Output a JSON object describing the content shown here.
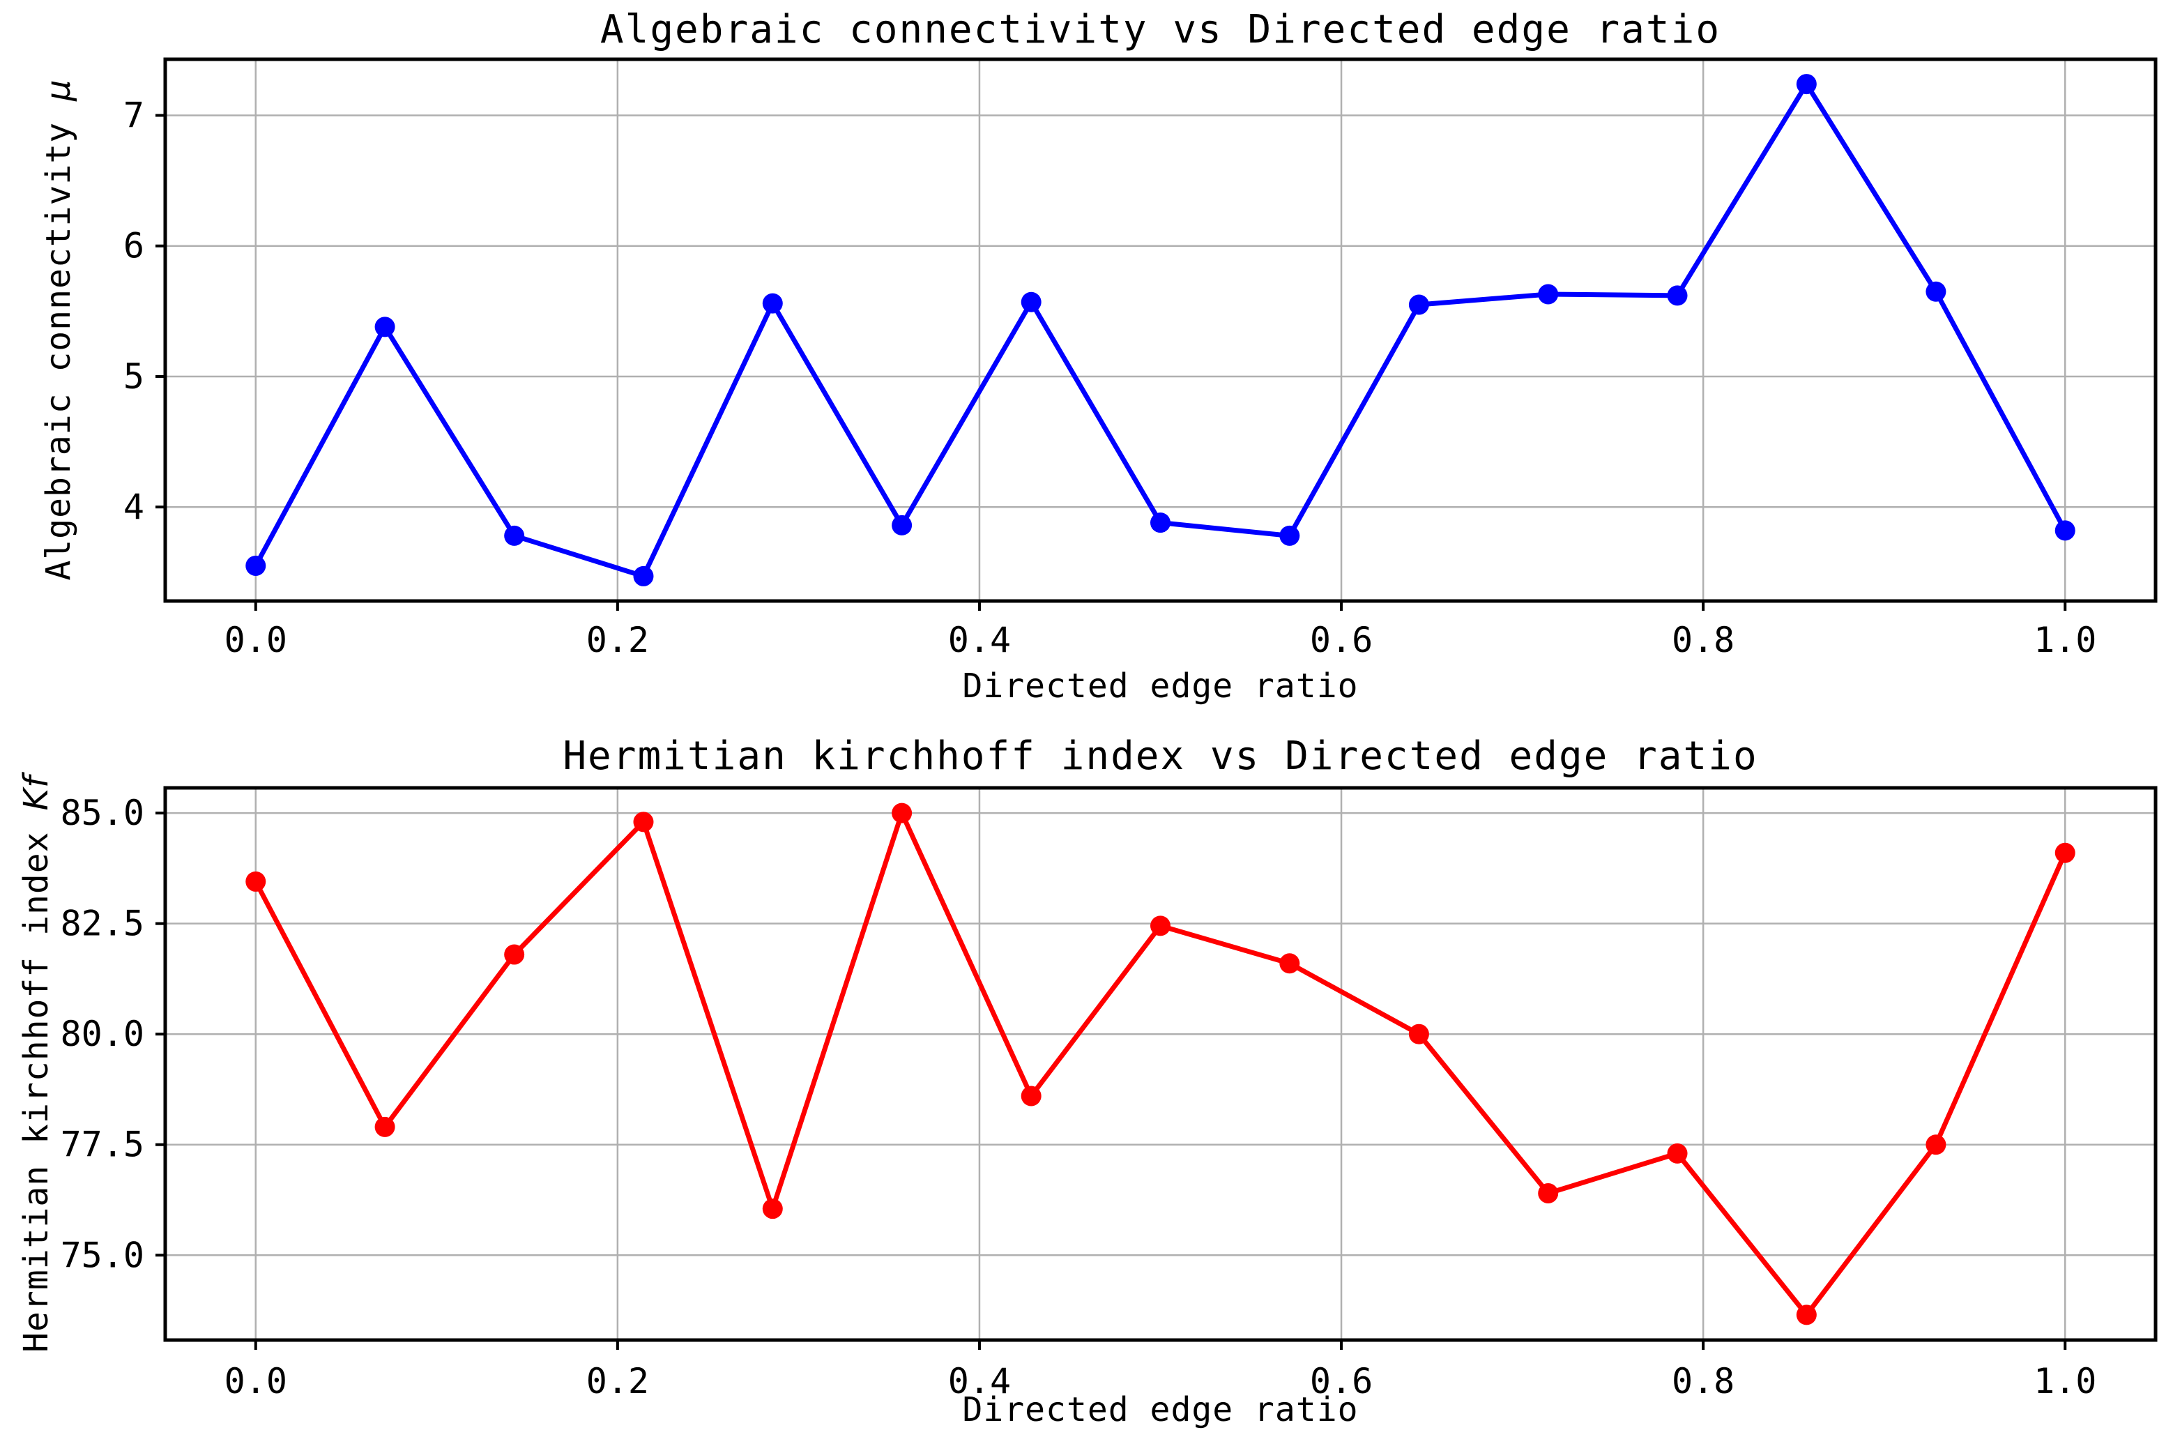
{
  "figure": {
    "background": "#ffffff",
    "grid_color": "#b0b0b0",
    "spine_color": "#000000",
    "text_color": "#000000"
  },
  "chart_data": [
    {
      "type": "line",
      "title": "Algebraic connectivity vs Directed edge ratio",
      "xlabel": "Directed edge ratio",
      "ylabel": "Algebraic connectivity",
      "ylabel_math": "μ",
      "line_color": "#0000ff",
      "marker": "o",
      "grid": true,
      "x": [
        0.0,
        0.0714,
        0.1429,
        0.2143,
        0.2857,
        0.3571,
        0.4286,
        0.5,
        0.5714,
        0.6429,
        0.7143,
        0.7857,
        0.8571,
        0.9286,
        1.0
      ],
      "y": [
        3.55,
        5.38,
        3.78,
        3.47,
        5.56,
        3.86,
        5.57,
        3.88,
        3.78,
        5.55,
        5.63,
        5.62,
        7.24,
        5.65,
        3.82
      ],
      "xlim": [
        -0.05,
        1.05
      ],
      "ylim": [
        3.28,
        7.43
      ],
      "xticks": [
        0.0,
        0.2,
        0.4,
        0.6,
        0.8,
        1.0
      ],
      "xtick_labels": [
        "0.0",
        "0.2",
        "0.4",
        "0.6",
        "0.8",
        "1.0"
      ],
      "yticks": [
        4,
        5,
        6,
        7
      ],
      "ytick_labels": [
        "4",
        "5",
        "6",
        "7"
      ]
    },
    {
      "type": "line",
      "title": "Hermitian kirchhoff index vs Directed edge ratio",
      "xlabel": "Directed edge ratio",
      "ylabel": "Hermitian kirchhoff index",
      "ylabel_math": "Kf",
      "line_color": "#ff0000",
      "marker": "o",
      "grid": true,
      "x": [
        0.0,
        0.0714,
        0.1429,
        0.2143,
        0.2857,
        0.3571,
        0.4286,
        0.5,
        0.5714,
        0.6429,
        0.7143,
        0.7857,
        0.8571,
        0.9286,
        1.0
      ],
      "y": [
        83.45,
        77.9,
        81.8,
        84.8,
        76.05,
        85.0,
        78.6,
        82.45,
        81.6,
        80.0,
        76.4,
        77.3,
        73.65,
        77.5,
        84.1
      ],
      "xlim": [
        -0.05,
        1.05
      ],
      "ylim": [
        73.08,
        85.57
      ],
      "xticks": [
        0.0,
        0.2,
        0.4,
        0.6,
        0.8,
        1.0
      ],
      "xtick_labels": [
        "0.0",
        "0.2",
        "0.4",
        "0.6",
        "0.8",
        "1.0"
      ],
      "yticks": [
        75.0,
        77.5,
        80.0,
        82.5,
        85.0
      ],
      "ytick_labels": [
        "75.0",
        "77.5",
        "80.0",
        "82.5",
        "85.0"
      ]
    }
  ]
}
